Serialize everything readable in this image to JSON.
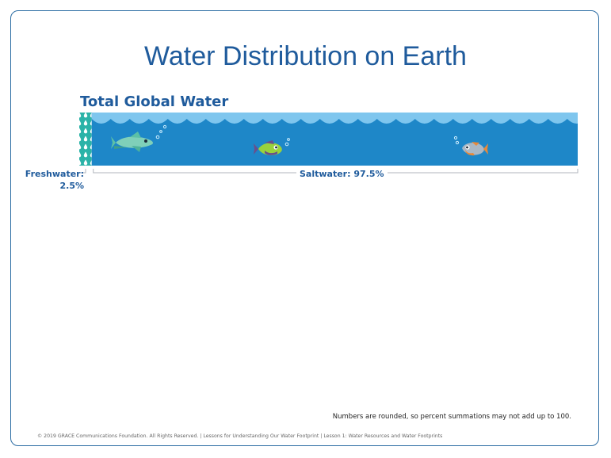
{
  "slide": {
    "title": "Water Distribution on Earth",
    "subtitle": "Total Global Water",
    "note": "Numbers are rounded, so percent summations may not add up to 100.",
    "footer": "© 2019  GRACE Communications  Foundation. All Rights Reserved.  |  Lessons for Understanding  Our Water Footprint  |  Lesson 1: Water Resources and Water Footprints"
  },
  "chart_data": {
    "type": "bar",
    "categories": [
      "Freshwater",
      "Saltwater"
    ],
    "values": [
      2.5,
      97.5
    ],
    "labels": {
      "freshwater_name": "Freshwater:",
      "freshwater_value": "2.5%",
      "saltwater": "Saltwater: 97.5%"
    },
    "colors": {
      "freshwater": "#2bb3a8",
      "saltwater": "#1e87c8",
      "waves": "#7fc6ee",
      "text": "#1f5b9c"
    }
  },
  "icons": [
    "fish-icon",
    "fish-icon",
    "fish-icon",
    "water-drop-icon"
  ]
}
